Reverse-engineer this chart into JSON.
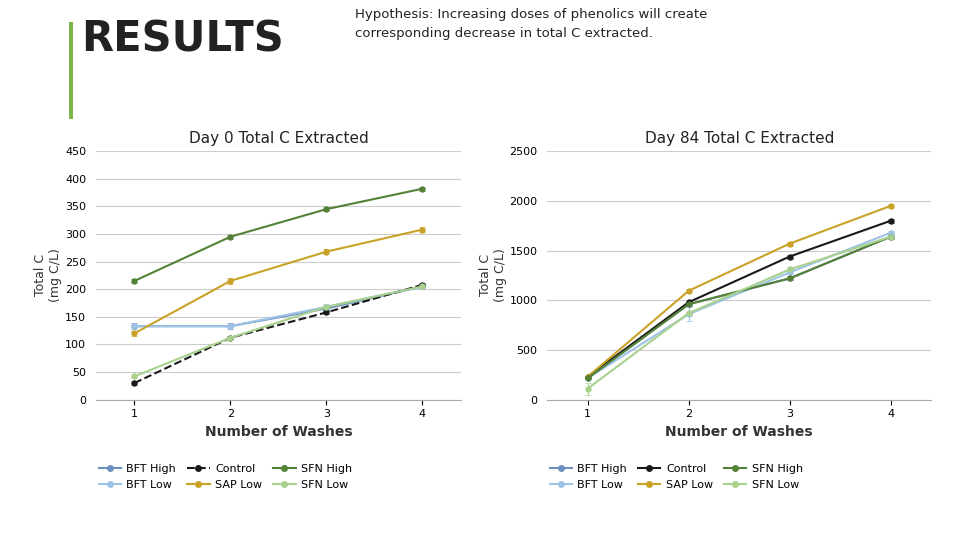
{
  "title_main": "Hypothesis: Increasing doses of phenolics will create\ncorresponding decrease in total C extracted.",
  "results_text": "RESULTS",
  "chart1_title": "Day 0 Total C Extracted",
  "chart2_title": "Day 84 Total C Extracted",
  "xlabel": "Number of Washes",
  "ylabel": "Total C\n(mg C/L)",
  "x": [
    1,
    2,
    3,
    4
  ],
  "day0": {
    "BFT High": {
      "y": [
        133,
        133,
        165,
        205
      ],
      "yerr": [
        5,
        5,
        5,
        5
      ],
      "color": "#6d8fbf",
      "marker": "o",
      "linestyle": "-"
    },
    "BFT Low": {
      "y": [
        133,
        133,
        168,
        205
      ],
      "yerr": [
        5,
        5,
        5,
        5
      ],
      "color": "#9dc3e6",
      "marker": "o",
      "linestyle": "-"
    },
    "Control": {
      "y": [
        30,
        112,
        158,
        208
      ],
      "yerr": [
        3,
        3,
        3,
        3
      ],
      "color": "#1a1a1a",
      "marker": "o",
      "linestyle": "--"
    },
    "SAP Low": {
      "y": [
        120,
        215,
        268,
        308
      ],
      "yerr": [
        5,
        5,
        5,
        5
      ],
      "color": "#c9a227",
      "marker": "o",
      "linestyle": "-"
    },
    "SFN High": {
      "y": [
        215,
        295,
        345,
        382
      ],
      "yerr": [
        4,
        4,
        4,
        4
      ],
      "color": "#538135",
      "marker": "o",
      "linestyle": "-"
    },
    "SFN Low": {
      "y": [
        42,
        112,
        168,
        205
      ],
      "yerr": [
        3,
        3,
        3,
        3
      ],
      "color": "#a9d18e",
      "marker": "o",
      "linestyle": "-"
    }
  },
  "day84": {
    "BFT High": {
      "y": [
        215,
        960,
        1220,
        1640
      ],
      "yerr": [
        10,
        15,
        20,
        20
      ],
      "color": "#6d8fbf",
      "marker": "o",
      "linestyle": "-"
    },
    "BFT Low": {
      "y": [
        215,
        860,
        1280,
        1680
      ],
      "yerr": [
        10,
        70,
        20,
        20
      ],
      "color": "#9dc3e6",
      "marker": "o",
      "linestyle": "-"
    },
    "Control": {
      "y": [
        230,
        980,
        1440,
        1800
      ],
      "yerr": [
        10,
        15,
        20,
        20
      ],
      "color": "#1a1a1a",
      "marker": "o",
      "linestyle": "-"
    },
    "SAP Low": {
      "y": [
        230,
        1095,
        1570,
        1950
      ],
      "yerr": [
        10,
        15,
        20,
        20
      ],
      "color": "#c9a227",
      "marker": "o",
      "linestyle": "-"
    },
    "SFN High": {
      "y": [
        215,
        960,
        1220,
        1640
      ],
      "yerr": [
        10,
        15,
        20,
        20
      ],
      "color": "#538135",
      "marker": "o",
      "linestyle": "-"
    },
    "SFN Low": {
      "y": [
        110,
        870,
        1310,
        1640
      ],
      "yerr": [
        60,
        15,
        20,
        20
      ],
      "color": "#a9d18e",
      "marker": "o",
      "linestyle": "-"
    }
  },
  "ylim_day0": [
    0,
    450
  ],
  "ylim_day84": [
    0,
    2500
  ],
  "yticks_day0": [
    0,
    50,
    100,
    150,
    200,
    250,
    300,
    350,
    400,
    450
  ],
  "yticks_day84": [
    0,
    500,
    1000,
    1500,
    2000,
    2500
  ],
  "background_color": "#ffffff",
  "accent_line_color": "#7ab648",
  "legend_order": [
    "BFT High",
    "BFT Low",
    "Control",
    "SAP Low",
    "SFN High",
    "SFN Low"
  ]
}
